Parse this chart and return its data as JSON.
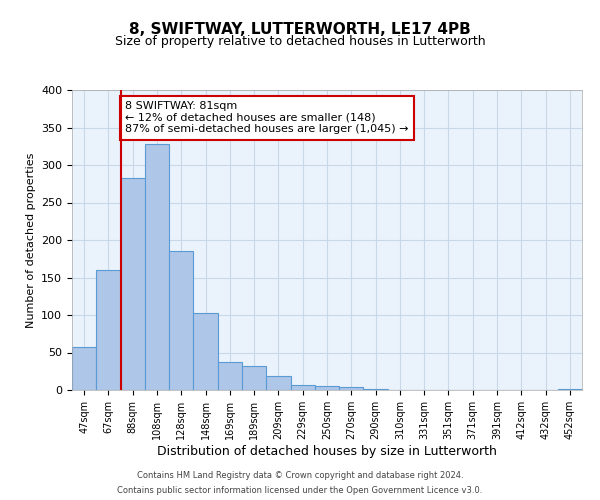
{
  "title": "8, SWIFTWAY, LUTTERWORTH, LE17 4PB",
  "subtitle": "Size of property relative to detached houses in Lutterworth",
  "xlabel": "Distribution of detached houses by size in Lutterworth",
  "ylabel": "Number of detached properties",
  "bin_labels": [
    "47sqm",
    "67sqm",
    "88sqm",
    "108sqm",
    "128sqm",
    "148sqm",
    "169sqm",
    "189sqm",
    "209sqm",
    "229sqm",
    "250sqm",
    "270sqm",
    "290sqm",
    "310sqm",
    "331sqm",
    "351sqm",
    "371sqm",
    "391sqm",
    "412sqm",
    "432sqm",
    "452sqm"
  ],
  "bar_heights": [
    57,
    160,
    283,
    328,
    185,
    103,
    37,
    32,
    19,
    7,
    5,
    4,
    2,
    0,
    0,
    0,
    0,
    0,
    0,
    0,
    2
  ],
  "bar_color": "#aec6e8",
  "bar_edge_color": "#5b9bd5",
  "vline_x": 1,
  "vline_color": "#cc0000",
  "annotation_text": "8 SWIFTWAY: 81sqm\n← 12% of detached houses are smaller (148)\n87% of semi-detached houses are larger (1,045) →",
  "annotation_box_color": "#ffffff",
  "annotation_box_edge_color": "#cc0000",
  "ylim": [
    0,
    400
  ],
  "yticks": [
    0,
    50,
    100,
    150,
    200,
    250,
    300,
    350,
    400
  ],
  "grid_color": "#c8d8e8",
  "background_color": "#eaf2fb",
  "footer_line1": "Contains HM Land Registry data © Crown copyright and database right 2024.",
  "footer_line2": "Contains public sector information licensed under the Open Government Licence v3.0."
}
